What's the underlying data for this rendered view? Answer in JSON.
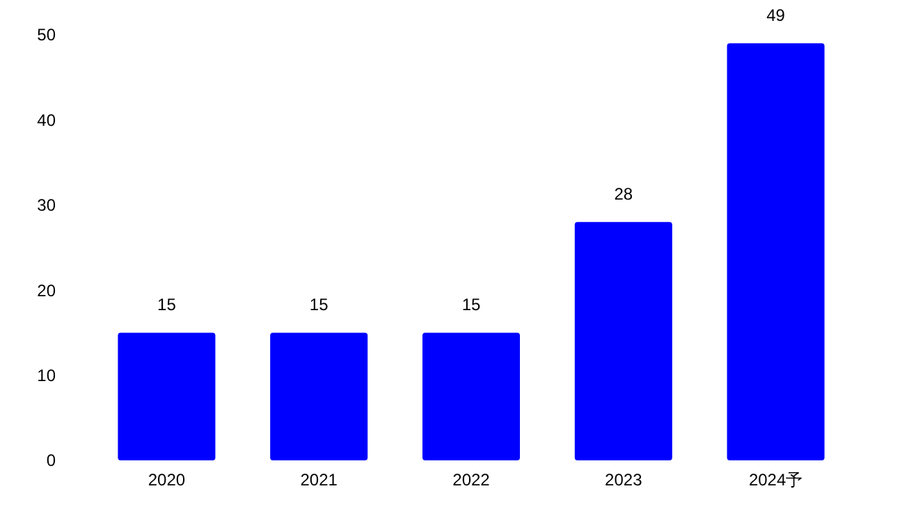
{
  "chart_data": {
    "type": "bar",
    "categories": [
      "2020",
      "2021",
      "2022",
      "2023",
      "2024予"
    ],
    "values": [
      15,
      15,
      15,
      28,
      49
    ],
    "color": "#0000ff",
    "ylim": [
      0,
      50
    ],
    "yticks": [
      0,
      10,
      20,
      30,
      40,
      50
    ],
    "data_labels": true,
    "grid": false
  }
}
